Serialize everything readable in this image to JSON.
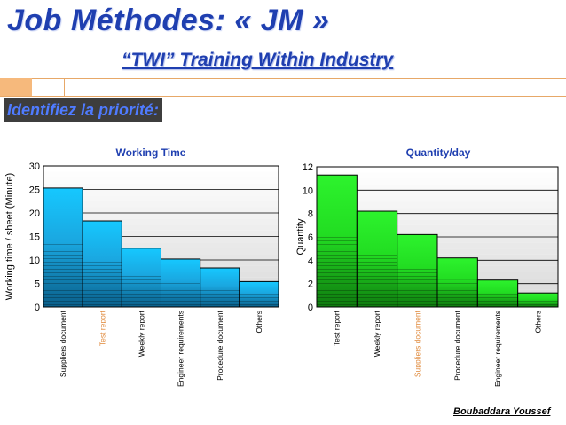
{
  "header": {
    "title": "Job Méthodes: « JM »",
    "subtitle": "“TWI” Training Within Industry",
    "section": "Identifiez la priorité:"
  },
  "footer": {
    "author": "Boubaddara Youssef"
  },
  "colors": {
    "title": "#1f3fb0",
    "accent_rule": "#e7a868",
    "left_bars": "#1aa7e0",
    "right_bars": "#22dd22",
    "highlight_label": "#e08a3c"
  },
  "chart_data": [
    {
      "type": "bar",
      "title": "Working Time",
      "xlabel": "",
      "ylabel": "Working time / sheet (Minute)",
      "ylim": [
        0,
        30
      ],
      "yticks": [
        0,
        5,
        10,
        15,
        20,
        25,
        30
      ],
      "categories": [
        "Suppliers document",
        "Test report",
        "Weekly report",
        "Engineer requirements",
        "Procedure document",
        "Others"
      ],
      "values": [
        25.3,
        18.3,
        12.5,
        10.2,
        8.3,
        5.4
      ],
      "highlight_category": "Test report",
      "grid": true
    },
    {
      "type": "bar",
      "title": "Quantity/day",
      "xlabel": "",
      "ylabel": "Quantity",
      "ylim": [
        0,
        12
      ],
      "yticks": [
        0,
        2,
        4,
        6,
        8,
        10,
        12
      ],
      "categories": [
        "Test report",
        "Weekly report",
        "Suppliers document",
        "Procedure document",
        "Engineer requirements",
        "Others"
      ],
      "values": [
        11.3,
        8.2,
        6.2,
        4.2,
        2.3,
        1.2
      ],
      "highlight_category": "Suppliers document",
      "grid": true
    }
  ]
}
